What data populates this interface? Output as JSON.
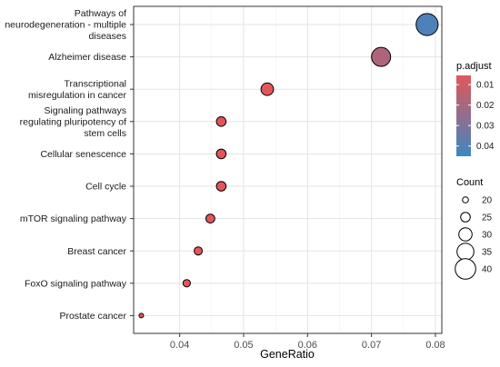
{
  "chart_data": {
    "type": "scatter",
    "xlabel": "GeneRatio",
    "xlim": [
      0.0328,
      0.081
    ],
    "xticks": [
      0.04,
      0.05,
      0.06,
      0.07,
      0.08
    ],
    "xtick_labels": [
      "0.04",
      "0.05",
      "0.06",
      "0.07",
      "0.08"
    ],
    "grid": true,
    "categories": [
      {
        "label_lines": [
          "Pathways of",
          "neurodegeneration - multiple",
          "diseases"
        ],
        "gene_ratio": 0.0787,
        "count": 42,
        "p_adjust": 0.0412
      },
      {
        "label_lines": [
          "Alzheimer disease"
        ],
        "gene_ratio": 0.0715,
        "count": 38,
        "p_adjust": 0.018
      },
      {
        "label_lines": [
          "Transcriptional",
          "misregulation in cancer"
        ],
        "gene_ratio": 0.0537,
        "count": 29,
        "p_adjust": 0.002
      },
      {
        "label_lines": [
          "Signaling pathways",
          "regulating pluripotency of",
          "stem cells"
        ],
        "gene_ratio": 0.0465,
        "count": 25,
        "p_adjust": 0.002
      },
      {
        "label_lines": [
          "Cellular senescence"
        ],
        "gene_ratio": 0.0465,
        "count": 25,
        "p_adjust": 0.002
      },
      {
        "label_lines": [
          "Cell cycle"
        ],
        "gene_ratio": 0.0465,
        "count": 25,
        "p_adjust": 0.002
      },
      {
        "label_lines": [
          "mTOR signaling pathway"
        ],
        "gene_ratio": 0.0448,
        "count": 24,
        "p_adjust": 0.002
      },
      {
        "label_lines": [
          "Breast cancer"
        ],
        "gene_ratio": 0.0429,
        "count": 23,
        "p_adjust": 0.002
      },
      {
        "label_lines": [
          "FoxO signaling pathway"
        ],
        "gene_ratio": 0.0411,
        "count": 22,
        "p_adjust": 0.002
      },
      {
        "label_lines": [
          "Prostate cancer"
        ],
        "gene_ratio": 0.034,
        "count": 18,
        "p_adjust": 0.002
      }
    ],
    "color_legend": {
      "title": "p.adjust",
      "range": [
        0.0055,
        0.045
      ],
      "ticks": [
        0.01,
        0.02,
        0.03,
        0.04
      ],
      "tick_labels": [
        "0.01",
        "0.02",
        "0.03",
        "0.04"
      ],
      "low_color": "#e2565b",
      "high_color": "#3f86c3"
    },
    "size_legend": {
      "title": "Count",
      "values": [
        20,
        25,
        30,
        35,
        40
      ],
      "labels": [
        "20",
        "25",
        "30",
        "35",
        "40"
      ]
    }
  }
}
